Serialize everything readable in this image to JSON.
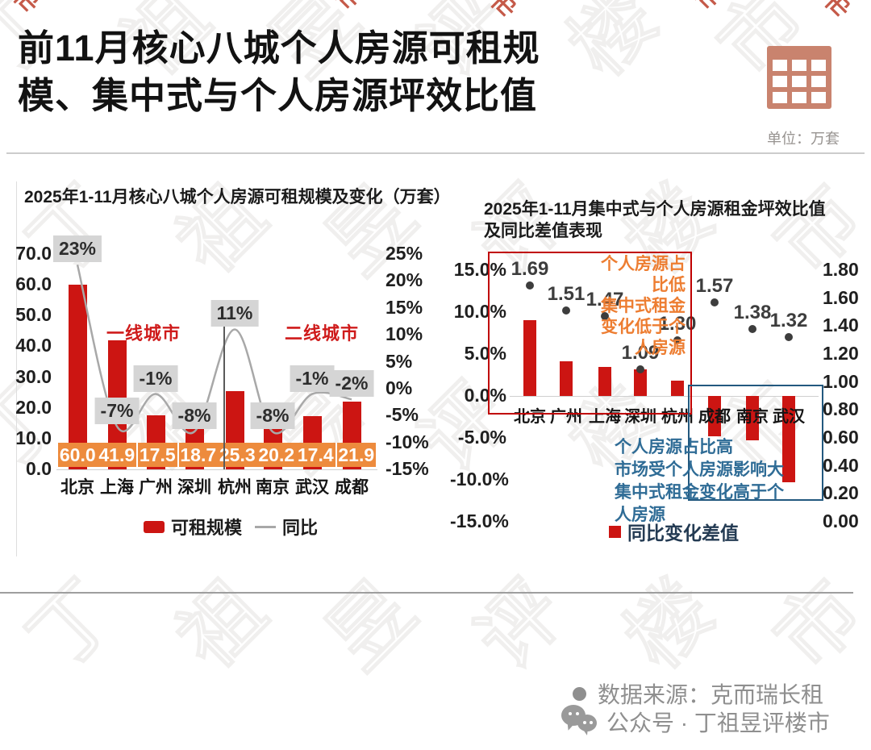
{
  "header": {
    "title_lines": [
      "前11月核心八城个人房源可租规",
      "模、集中式与个人房源坪效比值"
    ],
    "unit_label": "单位：万套"
  },
  "footer": {
    "source": "数据来源：克而瑞长租",
    "account": "公众号 · 丁祖昱评楼市"
  },
  "colors": {
    "bar_red": "#cc1512",
    "banner_orange": "#ed8b3d",
    "label_bg": "#d5d5d5",
    "group_red": "#cf1b1b",
    "line_gray": "#a8a8a8",
    "dot_dark": "#3d3d3d",
    "red_box": "#c00000",
    "blue_box": "#23597f",
    "orange_text": "#ed7d31",
    "blue_text": "#2f6c96",
    "legend_navy": "#243b53",
    "footer_gray": "#8f8f8f",
    "icon_salmon": "#c9836e"
  },
  "chart_data": [
    {
      "type": "bar",
      "title": "2025年1-11月核心八城个人房源可租规模及变化（万套）",
      "categories": [
        "北京",
        "上海",
        "广州",
        "深圳",
        "杭州",
        "南京",
        "武汉",
        "成都"
      ],
      "series": [
        {
          "name": "可租规模",
          "type": "bar",
          "unit": "万套",
          "values": [
            60.0,
            41.9,
            17.5,
            18.7,
            25.3,
            20.2,
            17.4,
            21.9
          ]
        },
        {
          "name": "同比",
          "type": "line",
          "unit": "%",
          "values": [
            23,
            -7,
            -1,
            -8,
            11,
            -8,
            -1,
            -2
          ]
        }
      ],
      "bar_value_labels": [
        "60.0",
        "41.9",
        "17.5",
        "18.7",
        "25.3",
        "20.2",
        "17.4",
        "21.9"
      ],
      "line_value_labels": [
        "23%",
        "-7%",
        "-1%",
        "-8%",
        "11%",
        "-8%",
        "-1%",
        "-2%"
      ],
      "left_axis_ticks": [
        "70.0",
        "60.0",
        "50.0",
        "40.0",
        "30.0",
        "20.0",
        "10.0",
        "0.0"
      ],
      "right_axis_ticks": [
        "25%",
        "20%",
        "15%",
        "10%",
        "5%",
        "0%",
        "-5%",
        "-10%",
        "-15%"
      ],
      "left_axis_range": [
        0,
        70
      ],
      "right_axis_range": [
        -15,
        25
      ],
      "group_labels": [
        "一线城市",
        "二线城市"
      ],
      "legend": [
        "可租规模",
        "同比"
      ],
      "grid": "off",
      "legend_position": "bottom"
    },
    {
      "type": "bar",
      "title_lines": [
        "2025年1-11月集中式与个人房源租金坪效比值",
        "及同比差值表现"
      ],
      "categories": [
        "北京",
        "广州",
        "上海",
        "深圳",
        "杭州",
        "成都",
        "南京",
        "武汉"
      ],
      "series": [
        {
          "name": "同比变化差值",
          "type": "bar",
          "unit": "%",
          "values": [
            9.0,
            4.1,
            3.5,
            3.2,
            1.8,
            -4.8,
            -5.3,
            -10.3
          ]
        },
        {
          "name": "集中式与个人房源租金坪效比值",
          "type": "scatter",
          "values": [
            1.69,
            1.51,
            1.47,
            1.09,
            1.3,
            1.57,
            1.38,
            1.32
          ]
        }
      ],
      "dot_value_labels": [
        "1.69",
        "1.51",
        "1.47",
        "1.09",
        "1.30",
        "1.57",
        "1.38",
        "1.32"
      ],
      "left_axis_ticks": [
        "15.0%",
        "10.0%",
        "5.0%",
        "0.0%",
        "-5.0%",
        "-10.0%",
        "-15.0%"
      ],
      "right_axis_ticks": [
        "1.80",
        "1.60",
        "1.40",
        "1.20",
        "1.00",
        "0.80",
        "0.60",
        "0.40",
        "0.20",
        "0.00"
      ],
      "left_axis_range": [
        -15,
        15
      ],
      "right_axis_range": [
        0,
        1.8
      ],
      "annotations": {
        "low_share_lines": [
          "个人房源占比低",
          "集中式租金变化低于个人房源"
        ],
        "high_share_lines": [
          "个人房源占比高",
          "市场受个人房源影响大集中式租金变化高于个人房源"
        ]
      },
      "legend": [
        "同比变化差值"
      ],
      "grid": "off",
      "legend_position": "bottom"
    }
  ]
}
